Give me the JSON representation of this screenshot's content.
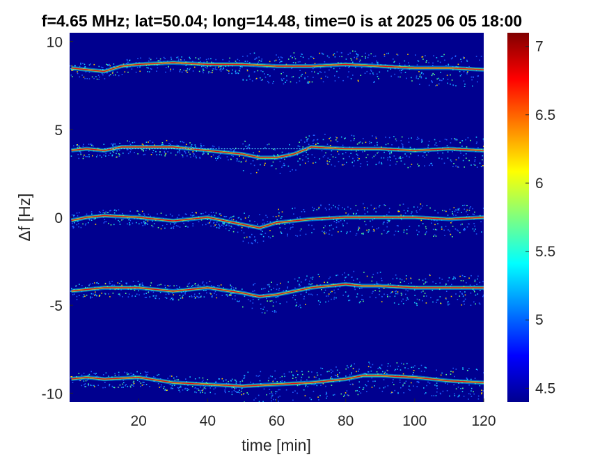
{
  "chart_data": {
    "type": "heatmap",
    "title": "f=4.65 MHz;  lat=50.04; long=14.48, time=0 is at 2025 06 05 18:00",
    "xlabel": "time [min]",
    "ylabel": "Δf [Hz]",
    "xlim": [
      0,
      120
    ],
    "ylim": [
      -10.5,
      10.5
    ],
    "x_ticks": [
      "20",
      "40",
      "60",
      "80",
      "100",
      "120"
    ],
    "y_ticks": [
      "10",
      "5",
      "0",
      "-5",
      "-10"
    ],
    "colorbar": {
      "range": [
        4.4,
        7.1
      ],
      "ticks": [
        "7",
        "6.5",
        "6",
        "5.5",
        "5",
        "4.5"
      ],
      "colormap": "jet"
    },
    "background_color": "#00008f",
    "traces": [
      {
        "x": [
          0,
          5,
          10,
          15,
          20,
          30,
          40,
          50,
          60,
          70,
          80,
          90,
          100,
          110,
          120
        ],
        "y": [
          8.5,
          8.4,
          8.3,
          8.6,
          8.7,
          8.8,
          8.7,
          8.7,
          8.6,
          8.6,
          8.7,
          8.6,
          8.5,
          8.5,
          8.4
        ]
      },
      {
        "x": [
          0,
          5,
          10,
          15,
          20,
          30,
          40,
          50,
          55,
          60,
          65,
          70,
          80,
          90,
          100,
          110,
          120
        ],
        "y": [
          3.8,
          3.9,
          3.8,
          4.0,
          4.0,
          4.0,
          3.8,
          3.6,
          3.4,
          3.4,
          3.6,
          4.0,
          3.9,
          3.9,
          3.8,
          3.9,
          3.8
        ]
      },
      {
        "x": [
          0,
          5,
          10,
          20,
          30,
          40,
          50,
          55,
          60,
          70,
          80,
          90,
          100,
          110,
          120
        ],
        "y": [
          -0.2,
          0.0,
          0.1,
          0.0,
          -0.2,
          0.0,
          -0.4,
          -0.6,
          -0.3,
          -0.1,
          0.0,
          0.0,
          0.0,
          -0.1,
          0.0
        ]
      },
      {
        "x": [
          0,
          10,
          20,
          30,
          40,
          50,
          55,
          60,
          70,
          80,
          85,
          90,
          100,
          110,
          120
        ],
        "y": [
          -4.2,
          -4.0,
          -4.0,
          -4.2,
          -4.0,
          -4.3,
          -4.5,
          -4.4,
          -4.0,
          -3.8,
          -3.9,
          -3.9,
          -4.0,
          -4.0,
          -4.0
        ]
      },
      {
        "x": [
          0,
          5,
          10,
          20,
          30,
          40,
          50,
          60,
          70,
          80,
          85,
          90,
          100,
          110,
          120
        ],
        "y": [
          -9.2,
          -9.1,
          -9.2,
          -9.1,
          -9.4,
          -9.5,
          -9.6,
          -9.5,
          -9.4,
          -9.2,
          -9.0,
          -9.0,
          -9.1,
          -9.3,
          -9.4
        ]
      }
    ],
    "constant_line": {
      "y": 3.9,
      "x": [
        10,
        70
      ]
    }
  }
}
